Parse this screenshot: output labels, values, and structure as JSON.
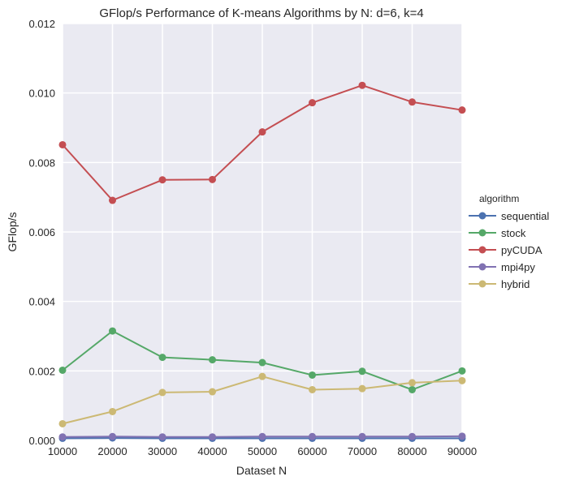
{
  "chart_data": {
    "type": "line",
    "title": "GFlop/s Performance of K-means Algorithms by N: d=6, k=4",
    "xlabel": "Dataset N",
    "ylabel": "GFlop/s",
    "x": [
      10000,
      20000,
      30000,
      40000,
      50000,
      60000,
      70000,
      80000,
      90000
    ],
    "xlim": [
      10000,
      90000
    ],
    "ylim": [
      0,
      0.012
    ],
    "xticks": [
      "10000",
      "20000",
      "30000",
      "40000",
      "50000",
      "60000",
      "70000",
      "80000",
      "90000"
    ],
    "yticks": [
      "0.000",
      "0.002",
      "0.004",
      "0.006",
      "0.008",
      "0.010",
      "0.012"
    ],
    "grid": true,
    "legend": {
      "title": "algorithm",
      "placement": "right"
    },
    "series": [
      {
        "name": "sequential",
        "color": "#4c72b0",
        "values": [
          6e-05,
          7e-05,
          6e-05,
          6e-05,
          6e-05,
          6e-05,
          6e-05,
          6e-05,
          6e-05
        ]
      },
      {
        "name": "stock",
        "color": "#55a868",
        "values": [
          0.00202,
          0.00315,
          0.00239,
          0.00232,
          0.00224,
          0.00188,
          0.00199,
          0.00146,
          0.002
        ]
      },
      {
        "name": "pyCUDA",
        "color": "#c44e52",
        "values": [
          0.00851,
          0.00691,
          0.0075,
          0.00751,
          0.00888,
          0.00972,
          0.01022,
          0.00974,
          0.00951
        ]
      },
      {
        "name": "mpi4py",
        "color": "#8172b2",
        "values": [
          0.0001,
          0.00011,
          0.0001,
          0.0001,
          0.00011,
          0.00011,
          0.00011,
          0.00011,
          0.00012
        ]
      },
      {
        "name": "hybrid",
        "color": "#ccb974",
        "values": [
          0.00048,
          0.00083,
          0.00138,
          0.0014,
          0.00184,
          0.00146,
          0.00149,
          0.00166,
          0.00172
        ]
      }
    ]
  }
}
